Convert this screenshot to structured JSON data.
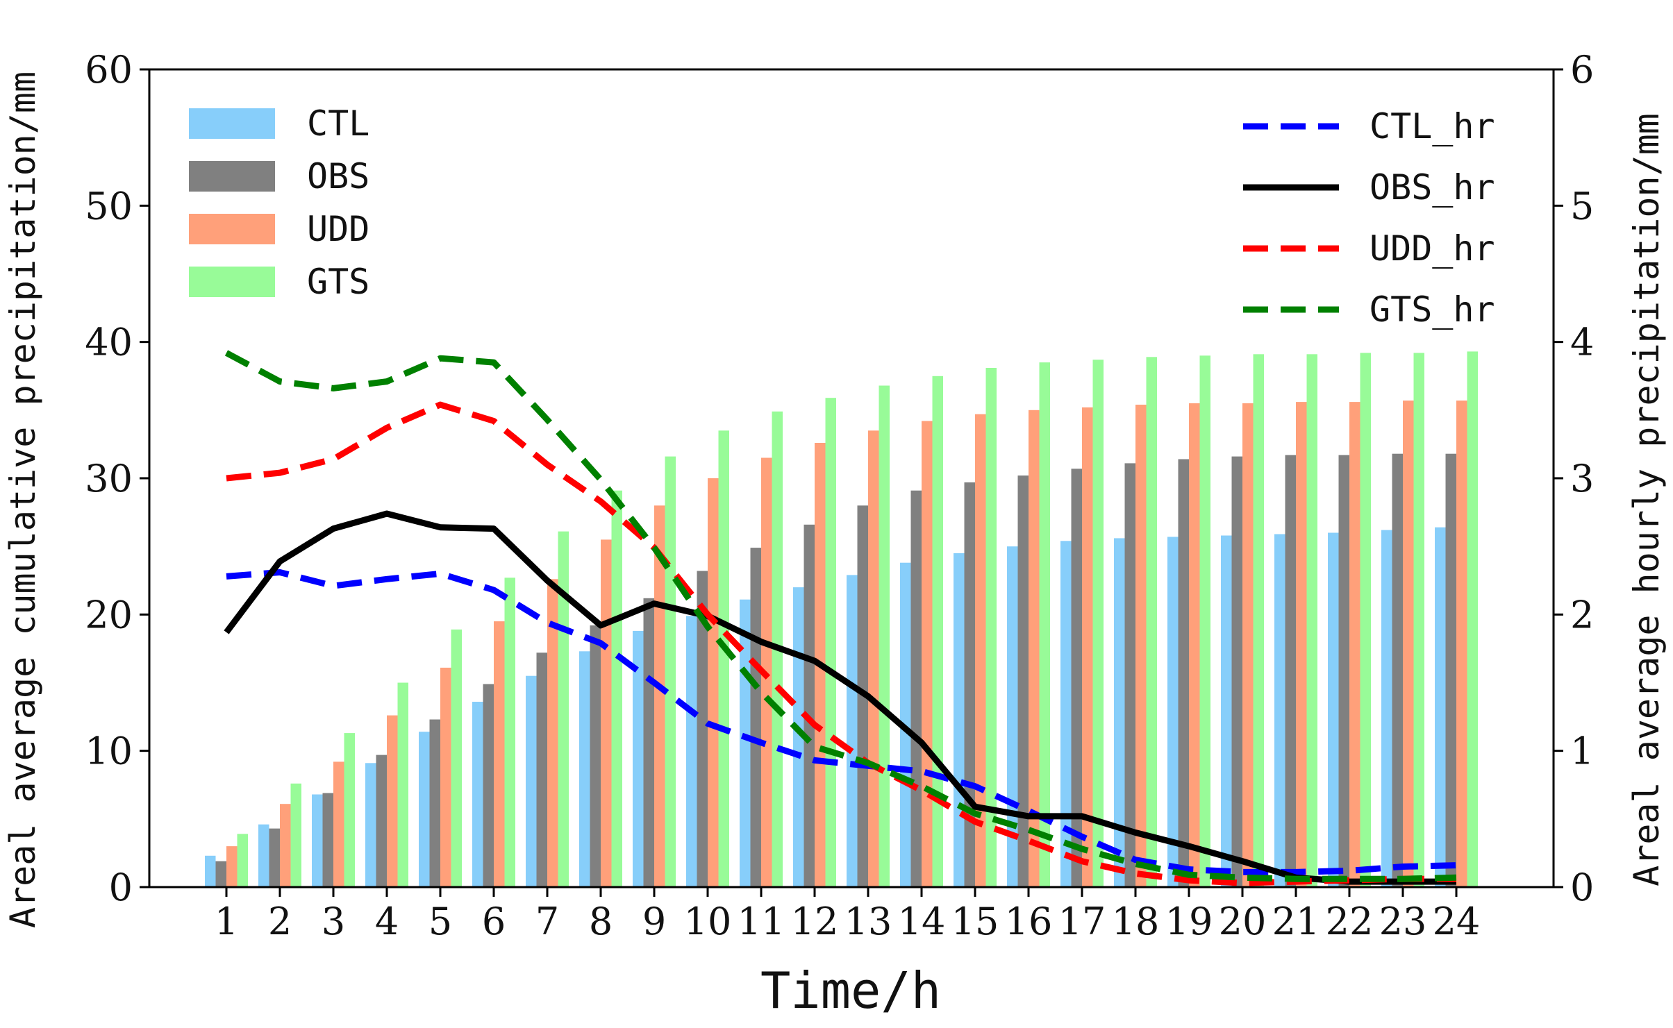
{
  "chart_data": {
    "type": "bar+line",
    "title": "",
    "xlabel": "Time/h",
    "ylabel_left": "Areal average cumulative precipitation/mm",
    "ylabel_right": "Areal average hourly precipitation/mm",
    "ylim_left": [
      0,
      60
    ],
    "ylim_right": [
      0,
      6
    ],
    "yticks_left": [
      "0",
      "10",
      "20",
      "30",
      "40",
      "50",
      "60"
    ],
    "yticks_right": [
      "0",
      "1",
      "2",
      "3",
      "4",
      "5",
      "6"
    ],
    "categories": [
      "1",
      "2",
      "3",
      "4",
      "5",
      "6",
      "7",
      "8",
      "9",
      "10",
      "11",
      "12",
      "13",
      "14",
      "15",
      "16",
      "17",
      "18",
      "19",
      "20",
      "21",
      "22",
      "23",
      "24"
    ],
    "bar_series": [
      {
        "name": "CTL",
        "color": "#87cefa",
        "values": [
          2.3,
          4.6,
          6.8,
          9.1,
          11.4,
          13.6,
          15.5,
          17.3,
          18.8,
          19.9,
          21.1,
          22.0,
          22.9,
          23.8,
          24.5,
          25.0,
          25.4,
          25.6,
          25.7,
          25.8,
          25.9,
          26.0,
          26.2,
          26.4
        ]
      },
      {
        "name": "OBS",
        "color": "#808080",
        "values": [
          1.9,
          4.3,
          6.9,
          9.7,
          12.3,
          14.9,
          17.2,
          19.2,
          21.2,
          23.2,
          24.9,
          26.6,
          28.0,
          29.1,
          29.7,
          30.2,
          30.7,
          31.1,
          31.4,
          31.6,
          31.7,
          31.7,
          31.8,
          31.8
        ]
      },
      {
        "name": "UDD",
        "color": "#ffa07a",
        "values": [
          3.0,
          6.1,
          9.2,
          12.6,
          16.1,
          19.5,
          22.6,
          25.5,
          28.0,
          30.0,
          31.5,
          32.6,
          33.5,
          34.2,
          34.7,
          35.0,
          35.2,
          35.4,
          35.5,
          35.5,
          35.6,
          35.6,
          35.7,
          35.7
        ]
      },
      {
        "name": "GTS",
        "color": "#98fb98",
        "values": [
          3.9,
          7.6,
          11.3,
          15.0,
          18.9,
          22.7,
          26.1,
          29.1,
          31.6,
          33.5,
          34.9,
          35.9,
          36.8,
          37.5,
          38.1,
          38.5,
          38.7,
          38.9,
          39.0,
          39.1,
          39.1,
          39.2,
          39.2,
          39.3
        ]
      }
    ],
    "line_series": [
      {
        "name": "CTL_hr",
        "color": "#0000ff",
        "style": "dashed",
        "values": [
          2.28,
          2.31,
          2.21,
          2.26,
          2.3,
          2.18,
          1.94,
          1.79,
          1.5,
          1.2,
          1.06,
          0.93,
          0.89,
          0.85,
          0.74,
          0.56,
          0.37,
          0.2,
          0.13,
          0.11,
          0.11,
          0.12,
          0.15,
          0.16
        ]
      },
      {
        "name": "OBS_hr",
        "color": "#000000",
        "style": "solid",
        "values": [
          1.87,
          2.39,
          2.63,
          2.74,
          2.64,
          2.63,
          2.25,
          1.92,
          2.08,
          1.99,
          1.8,
          1.66,
          1.4,
          1.06,
          0.59,
          0.52,
          0.52,
          0.4,
          0.3,
          0.19,
          0.07,
          0.04,
          0.04,
          0.04
        ]
      },
      {
        "name": "UDD_hr",
        "color": "#ff0000",
        "style": "dashed",
        "values": [
          3.0,
          3.04,
          3.14,
          3.37,
          3.54,
          3.42,
          3.1,
          2.83,
          2.49,
          2.0,
          1.59,
          1.19,
          0.91,
          0.71,
          0.48,
          0.34,
          0.19,
          0.1,
          0.05,
          0.03,
          0.04,
          0.05,
          0.06,
          0.06
        ]
      },
      {
        "name": "GTS_hr",
        "color": "#008000",
        "style": "dashed",
        "values": [
          3.92,
          3.71,
          3.66,
          3.71,
          3.88,
          3.85,
          3.43,
          2.99,
          2.49,
          1.91,
          1.43,
          1.03,
          0.91,
          0.74,
          0.54,
          0.42,
          0.28,
          0.17,
          0.09,
          0.07,
          0.06,
          0.06,
          0.06,
          0.07
        ]
      }
    ],
    "legend_left_position": "top-left",
    "legend_right_position": "top-right",
    "grid": false
  }
}
